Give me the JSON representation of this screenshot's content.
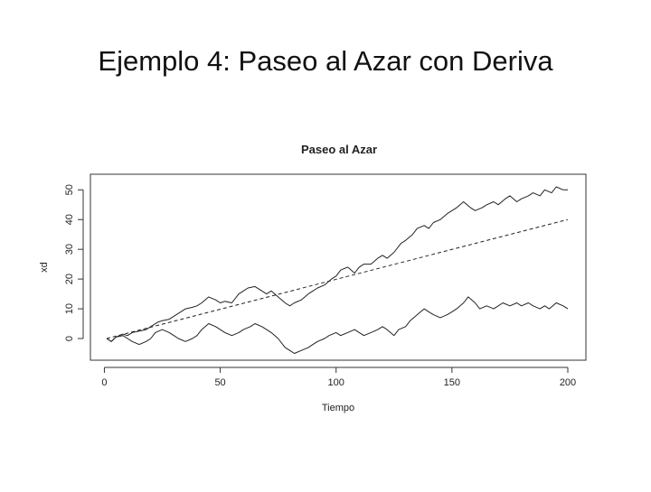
{
  "slide": {
    "title": "Ejemplo 4: Paseo al Azar con Deriva"
  },
  "chart_data": {
    "type": "line",
    "title": "Paseo al Azar",
    "xlabel": "Tiempo",
    "ylabel": "xd",
    "xlim": [
      1,
      200
    ],
    "ylim": [
      -5,
      52
    ],
    "xticks": [
      0,
      50,
      100,
      150,
      200
    ],
    "yticks": [
      0,
      10,
      20,
      30,
      40,
      50
    ],
    "grid": false,
    "legend": "none",
    "series": [
      {
        "style": "solid",
        "points": [
          [
            1,
            0
          ],
          [
            3,
            -1
          ],
          [
            5,
            0.5
          ],
          [
            8,
            1.5
          ],
          [
            10,
            1
          ],
          [
            12,
            2
          ],
          [
            15,
            2.5
          ],
          [
            18,
            3
          ],
          [
            20,
            4
          ],
          [
            23,
            5.5
          ],
          [
            25,
            6
          ],
          [
            28,
            6.5
          ],
          [
            30,
            7.5
          ],
          [
            33,
            9
          ],
          [
            35,
            10
          ],
          [
            38,
            10.5
          ],
          [
            40,
            11
          ],
          [
            42,
            12
          ],
          [
            45,
            14
          ],
          [
            48,
            13
          ],
          [
            50,
            12
          ],
          [
            52,
            12.5
          ],
          [
            55,
            12
          ],
          [
            58,
            15
          ],
          [
            60,
            16
          ],
          [
            62,
            17
          ],
          [
            65,
            17.5
          ],
          [
            68,
            16
          ],
          [
            70,
            15
          ],
          [
            72,
            16
          ],
          [
            75,
            14
          ],
          [
            78,
            12
          ],
          [
            80,
            11
          ],
          [
            82,
            12
          ],
          [
            85,
            13
          ],
          [
            88,
            15
          ],
          [
            90,
            16
          ],
          [
            92,
            17
          ],
          [
            95,
            18
          ],
          [
            98,
            20
          ],
          [
            100,
            21
          ],
          [
            102,
            23
          ],
          [
            105,
            24
          ],
          [
            108,
            22
          ],
          [
            110,
            24
          ],
          [
            112,
            25
          ],
          [
            115,
            25
          ],
          [
            118,
            27
          ],
          [
            120,
            28
          ],
          [
            122,
            27
          ],
          [
            125,
            29
          ],
          [
            128,
            32
          ],
          [
            130,
            33
          ],
          [
            133,
            35
          ],
          [
            135,
            37
          ],
          [
            138,
            38
          ],
          [
            140,
            37
          ],
          [
            142,
            39
          ],
          [
            145,
            40
          ],
          [
            148,
            42
          ],
          [
            150,
            43
          ],
          [
            152,
            44
          ],
          [
            155,
            46
          ],
          [
            158,
            44
          ],
          [
            160,
            43
          ],
          [
            163,
            44
          ],
          [
            165,
            45
          ],
          [
            168,
            46
          ],
          [
            170,
            45
          ],
          [
            173,
            47
          ],
          [
            175,
            48
          ],
          [
            178,
            46
          ],
          [
            180,
            47
          ],
          [
            183,
            48
          ],
          [
            185,
            49
          ],
          [
            188,
            48
          ],
          [
            190,
            50
          ],
          [
            193,
            49
          ],
          [
            195,
            51
          ],
          [
            198,
            50
          ],
          [
            200,
            50
          ]
        ]
      },
      {
        "style": "dashed",
        "points": [
          [
            1,
            0
          ],
          [
            200,
            40
          ]
        ]
      },
      {
        "style": "solid",
        "points": [
          [
            1,
            0
          ],
          [
            3,
            -1
          ],
          [
            5,
            0.5
          ],
          [
            8,
            1
          ],
          [
            10,
            0
          ],
          [
            12,
            -1
          ],
          [
            15,
            -2
          ],
          [
            18,
            -1
          ],
          [
            20,
            0
          ],
          [
            22,
            2
          ],
          [
            25,
            3
          ],
          [
            28,
            2
          ],
          [
            30,
            1
          ],
          [
            32,
            0
          ],
          [
            35,
            -1
          ],
          [
            38,
            0
          ],
          [
            40,
            1
          ],
          [
            42,
            3
          ],
          [
            45,
            5
          ],
          [
            48,
            4
          ],
          [
            50,
            3
          ],
          [
            52,
            2
          ],
          [
            55,
            1
          ],
          [
            58,
            2
          ],
          [
            60,
            3
          ],
          [
            63,
            4
          ],
          [
            65,
            5
          ],
          [
            68,
            4
          ],
          [
            70,
            3
          ],
          [
            72,
            2
          ],
          [
            75,
            0
          ],
          [
            78,
            -3
          ],
          [
            80,
            -4
          ],
          [
            82,
            -5
          ],
          [
            85,
            -4
          ],
          [
            88,
            -3
          ],
          [
            90,
            -2
          ],
          [
            92,
            -1
          ],
          [
            95,
            0
          ],
          [
            97,
            1
          ],
          [
            100,
            2
          ],
          [
            102,
            1
          ],
          [
            105,
            2
          ],
          [
            108,
            3
          ],
          [
            110,
            2
          ],
          [
            112,
            1
          ],
          [
            115,
            2
          ],
          [
            118,
            3
          ],
          [
            120,
            4
          ],
          [
            122,
            3
          ],
          [
            125,
            1
          ],
          [
            127,
            3
          ],
          [
            130,
            4
          ],
          [
            132,
            6
          ],
          [
            135,
            8
          ],
          [
            138,
            10
          ],
          [
            140,
            9
          ],
          [
            142,
            8
          ],
          [
            145,
            7
          ],
          [
            148,
            8
          ],
          [
            150,
            9
          ],
          [
            152,
            10
          ],
          [
            155,
            12
          ],
          [
            157,
            14
          ],
          [
            160,
            12
          ],
          [
            162,
            10
          ],
          [
            165,
            11
          ],
          [
            168,
            10
          ],
          [
            170,
            11
          ],
          [
            172,
            12
          ],
          [
            175,
            11
          ],
          [
            178,
            12
          ],
          [
            180,
            11
          ],
          [
            183,
            12
          ],
          [
            185,
            11
          ],
          [
            188,
            10
          ],
          [
            190,
            11
          ],
          [
            192,
            10
          ],
          [
            195,
            12
          ],
          [
            198,
            11
          ],
          [
            200,
            10
          ]
        ]
      }
    ]
  }
}
